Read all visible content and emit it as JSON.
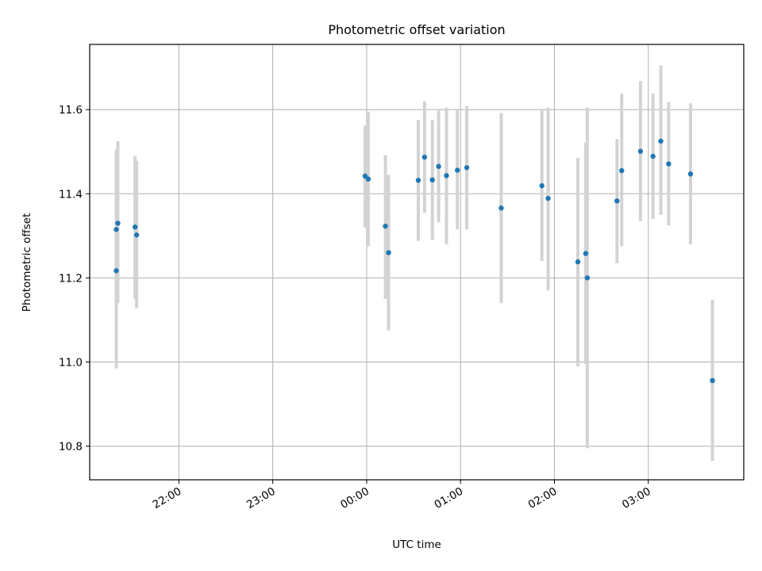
{
  "chart_data": {
    "type": "scatter",
    "title": "Photometric offset variation",
    "xlabel": "UTC time",
    "ylabel": "Photometric offset",
    "x_ticks": [
      "22:00",
      "23:00",
      "00:00",
      "01:00",
      "02:00",
      "03:00"
    ],
    "y_ticks": [
      "10.8",
      "11.0",
      "11.2",
      "11.4",
      "11.6"
    ],
    "xlim": [
      "21:03",
      "04:01"
    ],
    "ylim": [
      10.72,
      11.755
    ],
    "grid": true,
    "series": [
      {
        "color": "#1f77b4",
        "errorbar_color": "#d3d3d3",
        "points": [
          {
            "t": "21:20",
            "y": 11.217,
            "lo": 10.985,
            "hi": 11.452
          },
          {
            "t": "21:20",
            "y": 11.315,
            "lo": 11.13,
            "hi": 11.505
          },
          {
            "t": "21:21",
            "y": 11.33,
            "lo": 11.14,
            "hi": 11.525
          },
          {
            "t": "21:32",
            "y": 11.321,
            "lo": 11.15,
            "hi": 11.49
          },
          {
            "t": "21:33",
            "y": 11.302,
            "lo": 11.128,
            "hi": 11.478
          },
          {
            "t": "23:59",
            "y": 11.442,
            "lo": 11.32,
            "hi": 11.562
          },
          {
            "t": "00:01",
            "y": 11.435,
            "lo": 11.275,
            "hi": 11.595
          },
          {
            "t": "00:12",
            "y": 11.323,
            "lo": 11.15,
            "hi": 11.492
          },
          {
            "t": "00:14",
            "y": 11.26,
            "lo": 11.075,
            "hi": 11.445
          },
          {
            "t": "00:33",
            "y": 11.432,
            "lo": 11.288,
            "hi": 11.575
          },
          {
            "t": "00:37",
            "y": 11.487,
            "lo": 11.355,
            "hi": 11.62
          },
          {
            "t": "00:42",
            "y": 11.433,
            "lo": 11.29,
            "hi": 11.575
          },
          {
            "t": "00:46",
            "y": 11.465,
            "lo": 11.332,
            "hi": 11.598
          },
          {
            "t": "00:51",
            "y": 11.443,
            "lo": 11.28,
            "hi": 11.605
          },
          {
            "t": "00:58",
            "y": 11.456,
            "lo": 11.315,
            "hi": 11.598
          },
          {
            "t": "01:04",
            "y": 11.462,
            "lo": 11.315,
            "hi": 11.608
          },
          {
            "t": "01:26",
            "y": 11.366,
            "lo": 11.14,
            "hi": 11.592
          },
          {
            "t": "01:52",
            "y": 11.419,
            "lo": 11.24,
            "hi": 11.598
          },
          {
            "t": "01:56",
            "y": 11.389,
            "lo": 11.17,
            "hi": 11.605
          },
          {
            "t": "02:15",
            "y": 11.238,
            "lo": 10.99,
            "hi": 11.485
          },
          {
            "t": "02:20",
            "y": 11.258,
            "lo": 10.995,
            "hi": 11.522
          },
          {
            "t": "02:21",
            "y": 11.2,
            "lo": 10.795,
            "hi": 11.605
          },
          {
            "t": "02:40",
            "y": 11.383,
            "lo": 11.235,
            "hi": 11.53
          },
          {
            "t": "02:43",
            "y": 11.455,
            "lo": 11.275,
            "hi": 11.638
          },
          {
            "t": "02:55",
            "y": 11.501,
            "lo": 11.335,
            "hi": 11.668
          },
          {
            "t": "03:03",
            "y": 11.489,
            "lo": 11.34,
            "hi": 11.638
          },
          {
            "t": "03:08",
            "y": 11.525,
            "lo": 11.35,
            "hi": 11.705
          },
          {
            "t": "03:13",
            "y": 11.471,
            "lo": 11.325,
            "hi": 11.618
          },
          {
            "t": "03:27",
            "y": 11.447,
            "lo": 11.28,
            "hi": 11.615
          },
          {
            "t": "03:41",
            "y": 10.956,
            "lo": 10.765,
            "hi": 11.148
          }
        ]
      }
    ]
  }
}
